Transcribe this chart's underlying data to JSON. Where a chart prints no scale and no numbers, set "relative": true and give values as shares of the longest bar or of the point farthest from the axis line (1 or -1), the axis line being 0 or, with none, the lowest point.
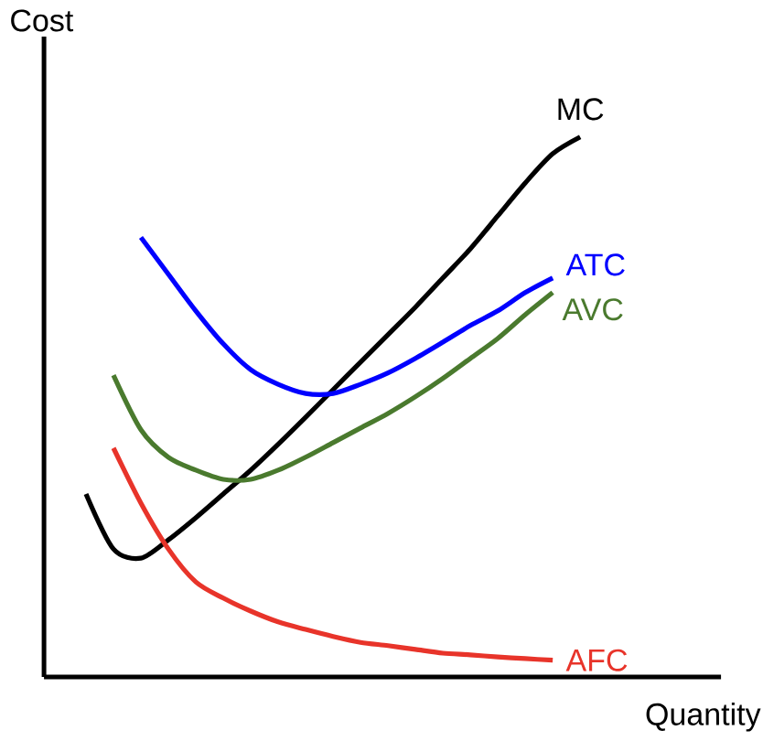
{
  "chart_data": {
    "type": "line",
    "relative": true,
    "xlabel": "Quantity",
    "ylabel": "Cost",
    "categories": [
      null,
      null,
      null,
      null,
      null,
      null,
      null,
      null,
      null,
      null,
      null,
      null,
      null,
      null,
      null,
      null,
      null,
      null,
      null
    ],
    "series": [
      {
        "name": "MC",
        "color": "#000000",
        "values": [
          0.339,
          0.237,
          0.22,
          0.254,
          0.295,
          0.339,
          0.383,
          0.431,
          0.481,
          0.532,
          0.583,
          0.634,
          0.685,
          0.739,
          0.793,
          0.854,
          0.915,
          0.969,
          1
        ]
      },
      {
        "name": "ATC",
        "color": "#0000ff",
        "values": [
          null,
          null,
          0.814,
          0.746,
          0.678,
          0.617,
          0.569,
          0.542,
          0.525,
          0.525,
          0.542,
          0.563,
          0.59,
          0.62,
          0.651,
          0.678,
          0.712,
          0.739,
          null
        ]
      },
      {
        "name": "AVC",
        "color": "#4a7a2e",
        "values": [
          null,
          0.559,
          0.458,
          0.407,
          0.383,
          0.366,
          0.366,
          0.383,
          0.407,
          0.434,
          0.461,
          0.488,
          0.519,
          0.553,
          0.59,
          0.627,
          0.671,
          0.712,
          null
        ]
      },
      {
        "name": "AFC",
        "color": "#e8342a",
        "values": [
          null,
          0.424,
          0.322,
          0.237,
          0.176,
          0.146,
          0.122,
          0.102,
          0.088,
          0.075,
          0.064,
          0.058,
          0.051,
          0.044,
          0.041,
          0.037,
          0.034,
          0.031,
          null
        ]
      }
    ]
  }
}
